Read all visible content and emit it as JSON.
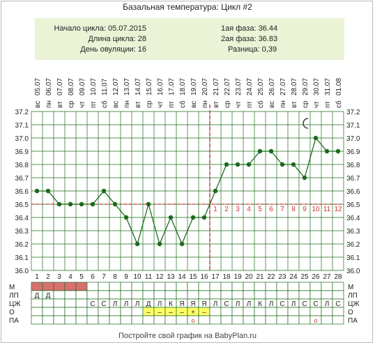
{
  "title": "Базальная температура: Цикл #2",
  "info": {
    "cycle_start": "Начало цикла: 05.07.2015",
    "cycle_length": "Длина цикла: 28",
    "ovulation_day": "День овуляции: 16",
    "phase1": "1ая фаза: 36.44",
    "phase2": "2ая фаза: 36.83",
    "difference": "Разница: 0,39"
  },
  "footer": "Постройте свой график на BabyPlan.ru",
  "colors": {
    "line": "#1a6b1a",
    "marker": "#1a6b1a",
    "grid": "#1a6b1a",
    "coverline": "#cc3333",
    "ovulation": "#cc3333",
    "info_bg": "#eaf3d6",
    "menses": "#d97070",
    "ovulation_test": "#ffff66"
  },
  "chart_data": {
    "type": "line",
    "title": "Базальная температура: Цикл #2",
    "x": [
      1,
      2,
      3,
      4,
      5,
      6,
      7,
      8,
      9,
      10,
      11,
      12,
      13,
      14,
      15,
      16,
      17,
      18,
      19,
      20,
      21,
      22,
      23,
      24,
      25,
      26,
      27,
      28
    ],
    "dates": [
      "05.07",
      "06.07",
      "07.07",
      "08.07",
      "09.07",
      "10.07",
      "11.07",
      "12.07",
      "13.07",
      "14.07",
      "15.07",
      "16.07",
      "17.07",
      "18.07",
      "19.07",
      "20.07",
      "21.07",
      "22.07",
      "23.07",
      "24.07",
      "25.07",
      "26.07",
      "27.07",
      "28.07",
      "29.07",
      "30.07",
      "31.07",
      "01.08"
    ],
    "weekdays": [
      "вс",
      "пн",
      "вт",
      "ср",
      "чт",
      "пт",
      "сб",
      "вс",
      "пн",
      "вт",
      "ср",
      "чт",
      "пт",
      "сб",
      "вс",
      "пн",
      "вт",
      "ср",
      "чт",
      "пт",
      "сб",
      "вс",
      "пн",
      "вт",
      "ср",
      "чт",
      "пт",
      "сб"
    ],
    "series": [
      {
        "values": [
          36.6,
          36.6,
          36.5,
          36.5,
          36.5,
          36.5,
          36.6,
          36.5,
          36.4,
          36.2,
          36.5,
          36.2,
          36.4,
          36.2,
          36.4,
          36.4,
          36.6,
          36.8,
          36.8,
          36.8,
          36.9,
          36.9,
          36.8,
          36.8,
          36.7,
          37.0,
          36.9,
          36.9
        ]
      }
    ],
    "ylim": [
      36.0,
      37.2
    ],
    "yticks": [
      "36.0",
      "36.1",
      "36.2",
      "36.3",
      "36.4",
      "36.5",
      "36.6",
      "36.7",
      "36.8",
      "36.9",
      "37.0",
      "37.1",
      "37.2"
    ],
    "coverline": 36.5,
    "ovulation_day": 16,
    "luteal_day_labels": [
      "1",
      "2",
      "3",
      "4",
      "5",
      "6",
      "7",
      "8",
      "9",
      "10",
      "11",
      "12"
    ],
    "moon_day": 25,
    "grid": true,
    "table_rows": [
      {
        "label": "М",
        "cells": [
          "■",
          "■",
          "■",
          "■",
          "■",
          "",
          "",
          "",
          "",
          "",
          "",
          "",
          "",
          "",
          "",
          "",
          "",
          "",
          "",
          "",
          "",
          "",
          "",
          "",
          "",
          "",
          "",
          ""
        ]
      },
      {
        "label": "ЛП",
        "cells": [
          "Д",
          "Д",
          "",
          "",
          "",
          "",
          "",
          "",
          "",
          "",
          "",
          "",
          "",
          "",
          "",
          "",
          "",
          "",
          "",
          "",
          "",
          "",
          "",
          "",
          "",
          "",
          "",
          ""
        ]
      },
      {
        "label": "ЦЖ",
        "cells": [
          "",
          "",
          "",
          "",
          "",
          "С",
          "С",
          "Л",
          "Л",
          "Л",
          "Д",
          "Л",
          "К",
          "Я",
          "Я",
          "Я",
          "Л",
          "С",
          "Л",
          "Л",
          "К",
          "Л",
          "С",
          "Л",
          "С",
          "С",
          "Л",
          "С"
        ]
      },
      {
        "label": "О",
        "cells": [
          "",
          "",
          "",
          "",
          "",
          "",
          "",
          "",
          "",
          "",
          "–",
          "–",
          "–",
          "–",
          "+",
          "–",
          "",
          "",
          "",
          "",
          "",
          "",
          "",
          "",
          "",
          "",
          "",
          ""
        ]
      },
      {
        "label": "ПА",
        "cells": [
          "",
          "",
          "",
          "",
          "",
          "",
          "",
          "",
          "",
          "",
          "",
          "",
          "",
          "",
          "о",
          "",
          "",
          "",
          "",
          "",
          "",
          "",
          "",
          "",
          "",
          "о",
          "",
          ""
        ]
      }
    ]
  }
}
